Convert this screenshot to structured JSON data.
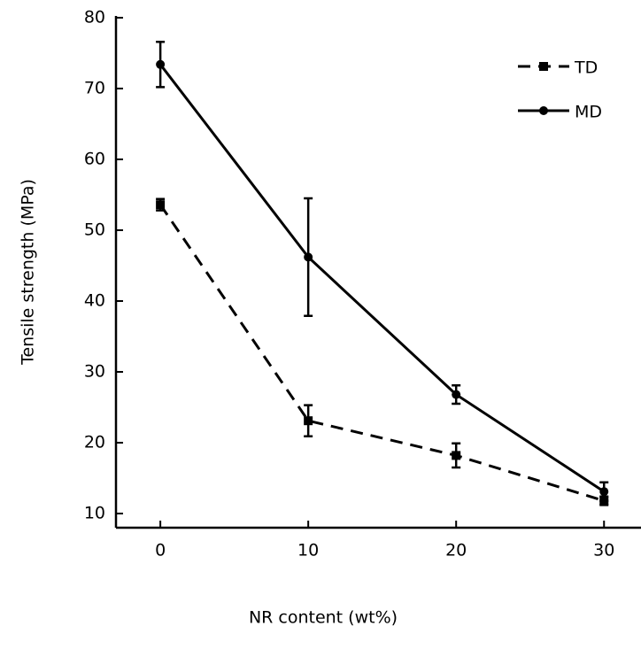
{
  "chart_data": {
    "type": "line",
    "x_label": "NR content (wt%)",
    "y_label": "Tensile strength (MPa)",
    "x": [
      0,
      10,
      20,
      30
    ],
    "series": [
      {
        "name": "TD",
        "color": "#000000",
        "dash": true,
        "marker": "square",
        "values": [
          53.6,
          23.1,
          18.2,
          11.8
        ],
        "errors": [
          0.8,
          2.2,
          1.7,
          0.6
        ]
      },
      {
        "name": "MD",
        "color": "#000000",
        "dash": false,
        "marker": "circle",
        "values": [
          73.4,
          46.2,
          26.8,
          13.1
        ],
        "errors": [
          3.2,
          8.3,
          1.3,
          1.3
        ]
      }
    ],
    "xlim": [
      -3,
      32.5
    ],
    "xticks": [
      0,
      10,
      20,
      30
    ],
    "ylim": [
      8,
      80
    ],
    "yticks": [
      10,
      20,
      30,
      40,
      50,
      60,
      70,
      80
    ],
    "legend": "upper right"
  }
}
